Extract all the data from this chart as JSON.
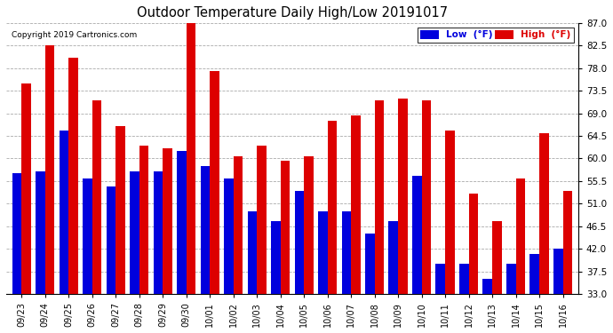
{
  "title": "Outdoor Temperature Daily High/Low 20191017",
  "copyright": "Copyright 2019 Cartronics.com",
  "legend_low": "Low  (°F)",
  "legend_high": "High  (°F)",
  "low_color": "#0000dd",
  "high_color": "#dd0000",
  "background_color": "#ffffff",
  "ylim": [
    33.0,
    87.0
  ],
  "yticks": [
    33.0,
    37.5,
    42.0,
    46.5,
    51.0,
    55.5,
    60.0,
    64.5,
    69.0,
    73.5,
    78.0,
    82.5,
    87.0
  ],
  "dates": [
    "09/23",
    "09/24",
    "09/25",
    "09/26",
    "09/27",
    "09/28",
    "09/29",
    "09/30",
    "10/01",
    "10/02",
    "10/03",
    "10/04",
    "10/05",
    "10/06",
    "10/07",
    "10/08",
    "10/09",
    "10/10",
    "10/11",
    "10/12",
    "10/13",
    "10/14",
    "10/15",
    "10/16"
  ],
  "lows": [
    57.0,
    57.5,
    65.5,
    56.0,
    54.5,
    57.5,
    57.5,
    61.5,
    58.5,
    56.0,
    49.5,
    47.5,
    53.5,
    49.5,
    49.5,
    45.0,
    47.5,
    56.5,
    39.0,
    39.0,
    36.0,
    39.0,
    41.0,
    42.0
  ],
  "highs": [
    75.0,
    82.5,
    80.0,
    71.5,
    66.5,
    62.5,
    62.0,
    88.0,
    77.5,
    60.5,
    62.5,
    59.5,
    60.5,
    67.5,
    68.5,
    71.5,
    72.0,
    71.5,
    65.5,
    53.0,
    47.5,
    56.0,
    65.0,
    53.5
  ],
  "bar_width": 0.4,
  "figsize": [
    6.9,
    3.75
  ],
  "dpi": 100
}
